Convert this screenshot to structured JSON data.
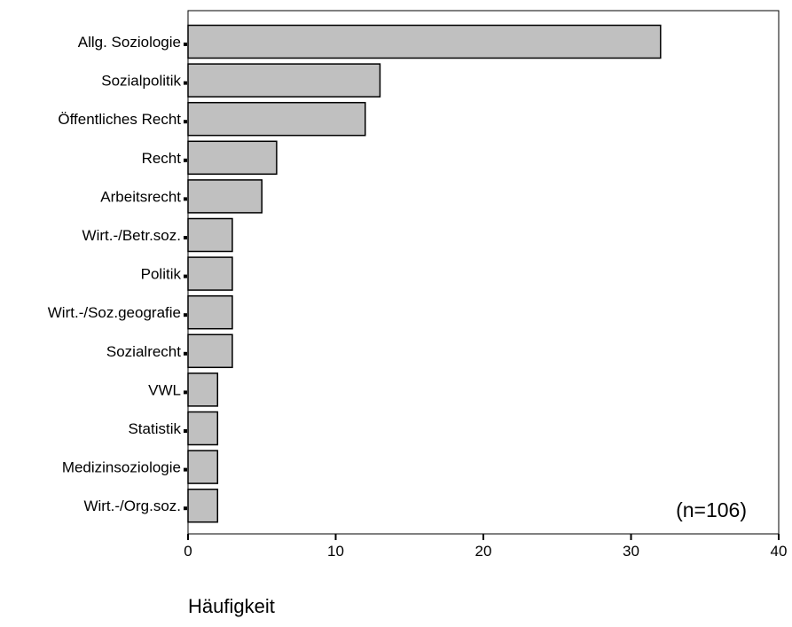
{
  "chart_data": {
    "type": "bar",
    "orientation": "horizontal",
    "categories": [
      "Allg. Soziologie",
      "Sozialpolitik",
      "Öffentliches Recht",
      "Recht",
      "Arbeitsrecht",
      "Wirt.-/Betr.soz.",
      "Politik",
      "Wirt.-/Soz.geografie",
      "Sozialrecht",
      "VWL",
      "Statistik",
      "Medizinsoziologie",
      "Wirt.-/Org.soz."
    ],
    "values": [
      32,
      13,
      12,
      6,
      5,
      3,
      3,
      3,
      3,
      2,
      2,
      2,
      2
    ],
    "xlabel": "Häufigkeit",
    "xlim": [
      0,
      40
    ],
    "xticks": [
      "0",
      "10",
      "20",
      "30",
      "40"
    ],
    "annotation": "(n=106)",
    "grid": false,
    "bar_fill": "#c0c0c0",
    "bar_stroke": "#000000"
  }
}
